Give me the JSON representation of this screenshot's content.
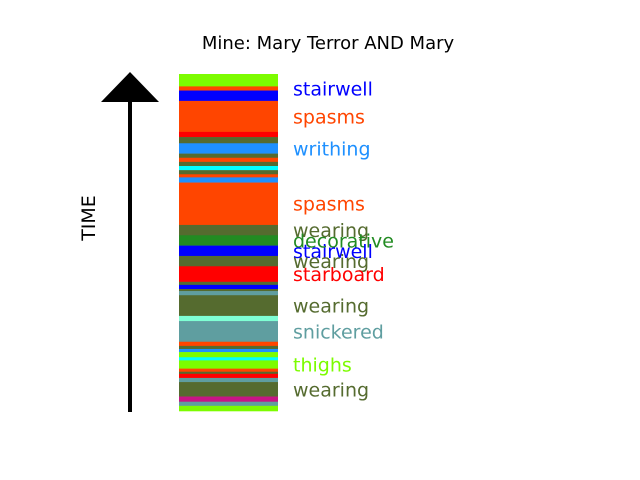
{
  "chart_data": {
    "type": "bar",
    "title": "Mine: Mary Terror AND Mary",
    "ylabel": "TIME",
    "stripes": [
      {
        "color": "#7cfc00",
        "span": 12
      },
      {
        "color": "#ff4500",
        "span": 4
      },
      {
        "color": "#0000ff",
        "span": 10
      },
      {
        "color": "#ff4500",
        "span": 30
      },
      {
        "color": "#ff0000",
        "span": 5
      },
      {
        "color": "#556b2f",
        "span": 6
      },
      {
        "color": "#1e90ff",
        "span": 10
      },
      {
        "color": "#556b2f",
        "span": 4
      },
      {
        "color": "#ff4500",
        "span": 4
      },
      {
        "color": "#556b2f",
        "span": 4
      },
      {
        "color": "#00ffff",
        "span": 4
      },
      {
        "color": "#556b2f",
        "span": 4
      },
      {
        "color": "#ff4500",
        "span": 3
      },
      {
        "color": "#1e90ff",
        "span": 5
      },
      {
        "color": "#ff4500",
        "span": 41
      },
      {
        "color": "#556b2f",
        "span": 10
      },
      {
        "color": "#228b22",
        "span": 10
      },
      {
        "color": "#0000ff",
        "span": 10
      },
      {
        "color": "#556b2f",
        "span": 10
      },
      {
        "color": "#ff0000",
        "span": 15
      },
      {
        "color": "#556b2f",
        "span": 3
      },
      {
        "color": "#0000ff",
        "span": 4
      },
      {
        "color": "#556b2f",
        "span": 2
      },
      {
        "color": "#5f9ea0",
        "span": 4
      },
      {
        "color": "#556b2f",
        "span": 20
      },
      {
        "color": "#7fffd4",
        "span": 5
      },
      {
        "color": "#5f9ea0",
        "span": 20
      },
      {
        "color": "#ff4500",
        "span": 4
      },
      {
        "color": "#556b2f",
        "span": 3
      },
      {
        "color": "#1e90ff",
        "span": 3
      },
      {
        "color": "#7cfc00",
        "span": 5
      },
      {
        "color": "#00ffff",
        "span": 3
      },
      {
        "color": "#7cfc00",
        "span": 8
      },
      {
        "color": "#ff4500",
        "span": 3
      },
      {
        "color": "#556b2f",
        "span": 2
      },
      {
        "color": "#ff0000",
        "span": 4
      },
      {
        "color": "#5f9ea0",
        "span": 4
      },
      {
        "color": "#556b2f",
        "span": 14
      },
      {
        "color": "#c71585",
        "span": 5
      },
      {
        "color": "#5f9ea0",
        "span": 4
      },
      {
        "color": "#7cfc00",
        "span": 5
      }
    ],
    "words": [
      {
        "text": "stairwell",
        "color": "#0000ff",
        "at": 1
      },
      {
        "text": "spasms",
        "color": "#ff4500",
        "at": 3
      },
      {
        "text": "writhing",
        "color": "#1e90ff",
        "at": 6
      },
      {
        "text": "spasms",
        "color": "#ff4500",
        "at": 14
      },
      {
        "text": "wearing",
        "color": "#556b2f",
        "at": 15
      },
      {
        "text": "decorative",
        "color": "#228b22",
        "at": 16
      },
      {
        "text": "stairwell",
        "color": "#0000ff",
        "at": 17
      },
      {
        "text": "wearing",
        "color": "#556b2f",
        "at": 18
      },
      {
        "text": "starboard",
        "color": "#ff0000",
        "at": 19
      },
      {
        "text": "wearing",
        "color": "#556b2f",
        "at": 24
      },
      {
        "text": "snickered",
        "color": "#5f9ea0",
        "at": 26
      },
      {
        "text": "thighs",
        "color": "#7cfc00",
        "at": 32
      },
      {
        "text": "wearing",
        "color": "#556b2f",
        "at": 37
      }
    ]
  }
}
